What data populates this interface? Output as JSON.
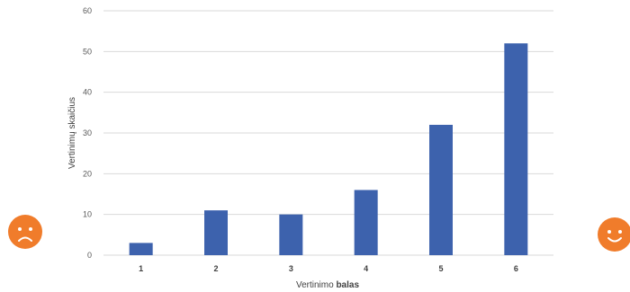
{
  "chart_data": {
    "type": "bar",
    "categories": [
      "1",
      "2",
      "3",
      "4",
      "5",
      "6"
    ],
    "values": [
      3,
      11,
      10,
      16,
      32,
      52
    ],
    "xlabel": {
      "regular": "Vertinimo ",
      "bold": "balas"
    },
    "ylabel": "Vertinimų skaičius",
    "ylim": [
      0,
      60
    ],
    "yticks": [
      "0",
      "10",
      "20",
      "30",
      "40",
      "50",
      "60"
    ],
    "grid": true,
    "bar_color": "#3D62AD",
    "grid_color": "#D9D9D9"
  },
  "decorations": {
    "left_icon": "sad-face-icon",
    "right_icon": "happy-face-icon",
    "icon_color": "#F07C2B"
  }
}
